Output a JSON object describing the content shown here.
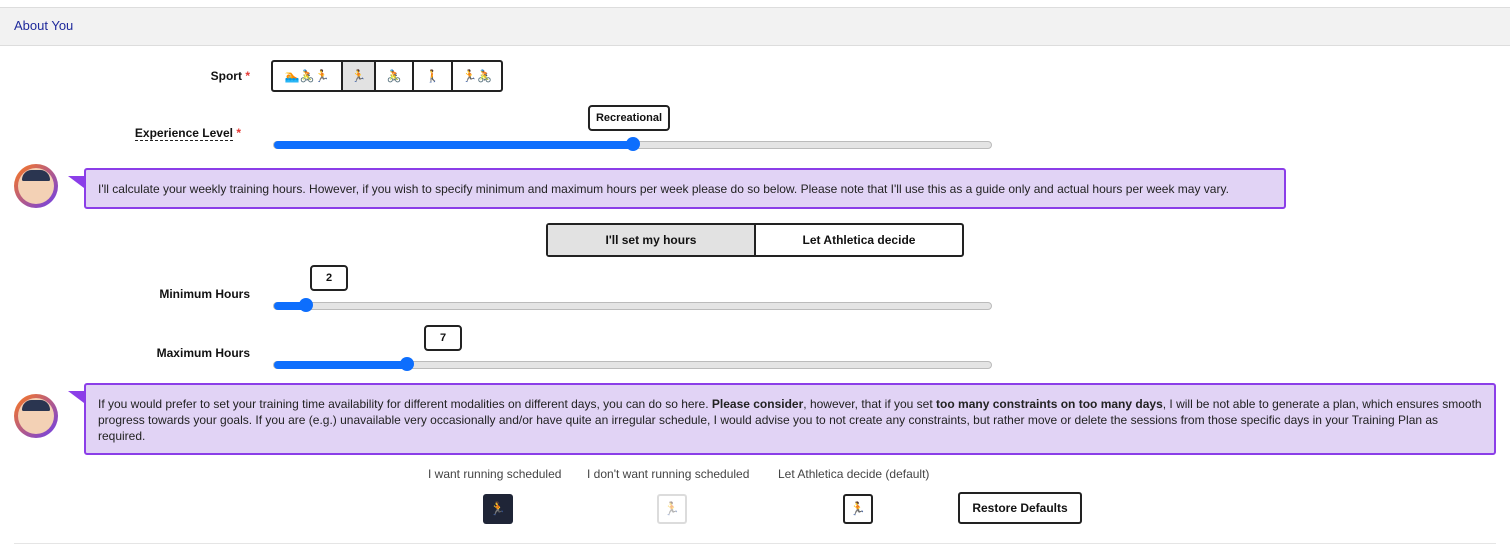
{
  "section": {
    "title": "About You"
  },
  "sport": {
    "label": "Sport",
    "required_mark": "*",
    "options": [
      {
        "icons": "🏊🚴🏃",
        "name": "triathlon"
      },
      {
        "icons": "🏃",
        "name": "running",
        "selected": true
      },
      {
        "icons": "🚴",
        "name": "cycling"
      },
      {
        "icons": "🚶",
        "name": "walking"
      },
      {
        "icons": "🏃🚴",
        "name": "duathlon"
      }
    ]
  },
  "experience": {
    "label": "Experience Level",
    "required_mark": "*",
    "value": "Recreational",
    "percent": 50
  },
  "coach_message_1": "I'll calculate your weekly training hours. However, if you wish to specify minimum and maximum hours per week please do so below. Please note that I'll use this as a guide only and actual hours per week may vary.",
  "hours_mode": {
    "options": [
      "I'll set my hours",
      "Let Athletica decide"
    ],
    "selected": "I'll set my hours"
  },
  "min_hours": {
    "label": "Minimum Hours",
    "value": "2",
    "percent": 4.4
  },
  "max_hours": {
    "label": "Maximum Hours",
    "value": "7",
    "percent": 18.5
  },
  "coach_message_2": {
    "p1": "If you would prefer to set your training time availability for different modalities on different days, you can do so here. ",
    "b1": "Please consider",
    "p2": ", however, that if you set ",
    "b2": "too many constraints on too many days",
    "p3": ", I will be not able to generate a plan, which ensures smooth progress towards your goals. If you are (e.g.) unavailable very occasionally and/or have quite an irregular schedule, I would advise you to not create any constraints, but rather move or delete the sessions from those specific days in your Training Plan as required."
  },
  "schedule_options": [
    {
      "label": "I want running scheduled",
      "icon": "running-icon"
    },
    {
      "label": "I don't want running scheduled",
      "icon": "running-icon"
    },
    {
      "label": "Let Athletica decide (default)",
      "icon": "running-icon"
    }
  ],
  "restore_label": "Restore Defaults"
}
